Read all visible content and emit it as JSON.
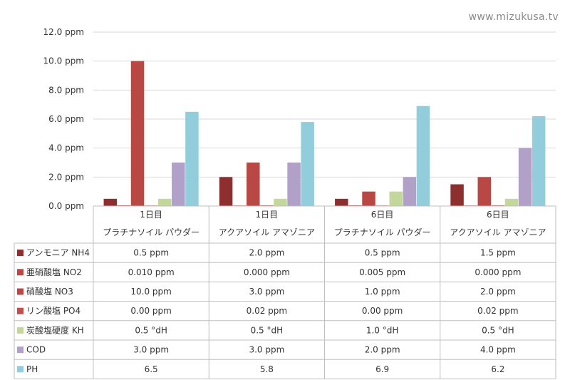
{
  "watermark": "www.mizukusa.tv",
  "colors": {
    "nh4": "#8e2f2f",
    "no2": "#b94744",
    "no3": "#b94744",
    "po4": "#c0504d",
    "kh": "#c4d79b",
    "cod": "#b1a0c7",
    "ph": "#92cddc",
    "grid": "#d9d9d9",
    "border": "#bfbfbf"
  },
  "chart_data": {
    "type": "bar",
    "categories": [
      [
        "1日目",
        "プラチナソイル パウダー"
      ],
      [
        "1日目",
        "アクアソイル アマゾニア"
      ],
      [
        "6日目",
        "プラチナソイル パウダー"
      ],
      [
        "6日目",
        "アクアソイル アマゾニア"
      ]
    ],
    "y_ticks": [
      "0.0 ppm",
      "2.0 ppm",
      "4.0 ppm",
      "6.0 ppm",
      "8.0 ppm",
      "10.0 ppm",
      "12.0 ppm"
    ],
    "ylim": [
      0,
      12
    ],
    "series": [
      {
        "key": "nh4",
        "name": "アンモニア NH4",
        "values": [
          0.5,
          2.0,
          0.5,
          1.5
        ],
        "cells": [
          "0.5 ppm",
          "2.0 ppm",
          "0.5 ppm",
          "1.5 ppm"
        ]
      },
      {
        "key": "no2",
        "name": "亜硝酸塩  NO2",
        "values": [
          0.01,
          0.0,
          0.005,
          0.0
        ],
        "cells": [
          "0.010 ppm",
          "0.000 ppm",
          "0.005 ppm",
          "0.000 ppm"
        ]
      },
      {
        "key": "no3",
        "name": "硝酸塩 NO3",
        "values": [
          10.0,
          3.0,
          1.0,
          2.0
        ],
        "cells": [
          "10.0 ppm",
          "3.0 ppm",
          "1.0 ppm",
          "2.0 ppm"
        ]
      },
      {
        "key": "po4",
        "name": "リン酸塩  PO4",
        "values": [
          0.0,
          0.02,
          0.0,
          0.02
        ],
        "cells": [
          "0.00 ppm",
          "0.02 ppm",
          "0.00 ppm",
          "0.02 ppm"
        ]
      },
      {
        "key": "kh",
        "name": "炭酸塩硬度 KH",
        "values": [
          0.5,
          0.5,
          1.0,
          0.5
        ],
        "cells": [
          "0.5 °dH",
          "0.5 °dH",
          "1.0 °dH",
          "0.5 °dH"
        ]
      },
      {
        "key": "cod",
        "name": "COD",
        "values": [
          3.0,
          3.0,
          2.0,
          4.0
        ],
        "cells": [
          "3.0 ppm",
          "3.0 ppm",
          "2.0 ppm",
          "4.0 ppm"
        ]
      },
      {
        "key": "ph",
        "name": "PH",
        "values": [
          6.5,
          5.8,
          6.9,
          6.2
        ],
        "cells": [
          "6.5",
          "5.8",
          "6.9",
          "6.2"
        ]
      }
    ]
  }
}
